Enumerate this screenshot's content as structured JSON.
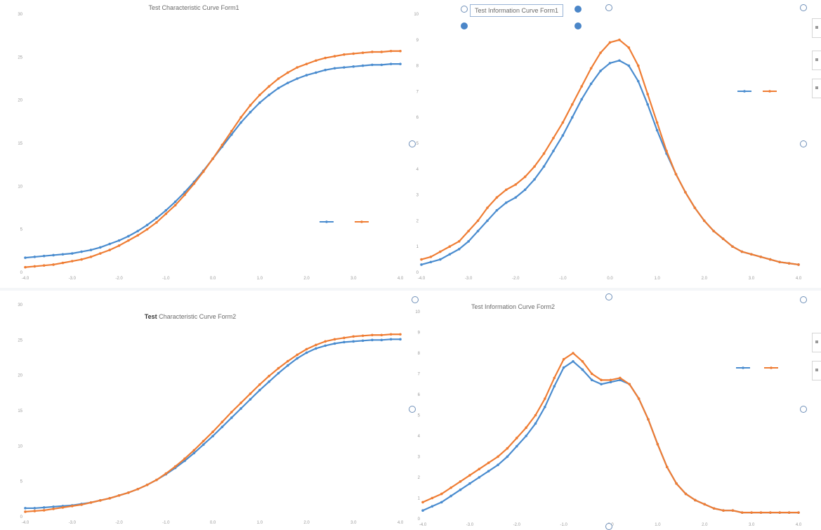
{
  "chart_data": [
    {
      "id": "tcc1",
      "type": "line",
      "title": "Test Characteristic Curve Form1",
      "xlabel": "",
      "ylabel": "",
      "ylim": [
        0,
        30
      ],
      "yticks": [
        0,
        5,
        10,
        15,
        20,
        25,
        30
      ],
      "x": [
        -4.0,
        -3.8,
        -3.6,
        -3.4,
        -3.2,
        -3.0,
        -2.8,
        -2.6,
        -2.4,
        -2.2,
        -2.0,
        -1.8,
        -1.6,
        -1.4,
        -1.2,
        -1.0,
        -0.8,
        -0.6,
        -0.4,
        -0.2,
        0.0,
        0.2,
        0.4,
        0.6,
        0.8,
        1.0,
        1.2,
        1.4,
        1.6,
        1.8,
        2.0,
        2.2,
        2.4,
        2.6,
        2.8,
        3.0,
        3.2,
        3.4,
        3.6,
        3.8,
        4.0
      ],
      "xticks": [
        -4.0,
        -3.0,
        -2.0,
        -1.0,
        0.0,
        1.0,
        2.0,
        3.0,
        4.0
      ],
      "grid": false,
      "legend_position": "lower-right",
      "series": [
        {
          "color": "#4a8ccf",
          "values": [
            1.7,
            1.8,
            1.9,
            2.0,
            2.1,
            2.2,
            2.4,
            2.6,
            2.9,
            3.3,
            3.7,
            4.2,
            4.8,
            5.5,
            6.3,
            7.2,
            8.2,
            9.3,
            10.5,
            11.8,
            13.2,
            14.6,
            16.0,
            17.4,
            18.6,
            19.7,
            20.6,
            21.4,
            22.0,
            22.5,
            22.9,
            23.2,
            23.5,
            23.7,
            23.8,
            23.9,
            24.0,
            24.1,
            24.1,
            24.2,
            24.2
          ]
        },
        {
          "color": "#ef7d34",
          "values": [
            0.6,
            0.7,
            0.8,
            0.9,
            1.1,
            1.3,
            1.5,
            1.8,
            2.2,
            2.6,
            3.1,
            3.7,
            4.3,
            5.0,
            5.8,
            6.8,
            7.8,
            9.0,
            10.3,
            11.7,
            13.2,
            14.8,
            16.4,
            18.0,
            19.4,
            20.6,
            21.6,
            22.5,
            23.2,
            23.8,
            24.2,
            24.6,
            24.9,
            25.1,
            25.3,
            25.4,
            25.5,
            25.6,
            25.6,
            25.7,
            25.7
          ]
        }
      ]
    },
    {
      "id": "tic1",
      "type": "line",
      "title": "Test Information Curve Form1",
      "xlabel": "",
      "ylabel": "",
      "ylim": [
        0,
        10
      ],
      "yticks": [
        0,
        1,
        2,
        3,
        4,
        5,
        6,
        7,
        8,
        9,
        10
      ],
      "x": [
        -4.0,
        -3.8,
        -3.6,
        -3.4,
        -3.2,
        -3.0,
        -2.8,
        -2.6,
        -2.4,
        -2.2,
        -2.0,
        -1.8,
        -1.6,
        -1.4,
        -1.2,
        -1.0,
        -0.8,
        -0.6,
        -0.4,
        -0.2,
        0.0,
        0.2,
        0.4,
        0.6,
        0.8,
        1.0,
        1.2,
        1.4,
        1.6,
        1.8,
        2.0,
        2.2,
        2.4,
        2.6,
        2.8,
        3.0,
        3.2,
        3.4,
        3.6,
        3.8,
        4.0
      ],
      "xticks": [
        -4.0,
        -3.0,
        -2.0,
        -1.0,
        0.0,
        1.0,
        2.0,
        3.0,
        4.0
      ],
      "grid": false,
      "legend_position": "top-right",
      "series": [
        {
          "color": "#4a8ccf",
          "values": [
            0.3,
            0.4,
            0.5,
            0.7,
            0.9,
            1.2,
            1.6,
            2.0,
            2.4,
            2.7,
            2.9,
            3.2,
            3.6,
            4.1,
            4.7,
            5.3,
            6.0,
            6.7,
            7.3,
            7.8,
            8.1,
            8.2,
            8.0,
            7.4,
            6.5,
            5.5,
            4.6,
            3.8,
            3.1,
            2.5,
            2.0,
            1.6,
            1.3,
            1.0,
            0.8,
            0.7,
            0.6,
            0.5,
            0.4,
            0.35,
            0.3
          ]
        },
        {
          "color": "#ef7d34",
          "values": [
            0.5,
            0.6,
            0.8,
            1.0,
            1.2,
            1.6,
            2.0,
            2.5,
            2.9,
            3.2,
            3.4,
            3.7,
            4.1,
            4.6,
            5.2,
            5.8,
            6.5,
            7.2,
            7.9,
            8.5,
            8.9,
            9.0,
            8.7,
            8.0,
            6.9,
            5.8,
            4.7,
            3.8,
            3.1,
            2.5,
            2.0,
            1.6,
            1.3,
            1.0,
            0.8,
            0.7,
            0.6,
            0.5,
            0.4,
            0.35,
            0.3
          ]
        }
      ]
    },
    {
      "id": "tcc2",
      "type": "line",
      "title_bold": "Test",
      "title": "Characteristic Curve Form2",
      "xlabel": "",
      "ylabel": "",
      "ylim": [
        0,
        30
      ],
      "yticks": [
        0,
        5,
        10,
        15,
        20,
        25,
        30
      ],
      "x": [
        -4.0,
        -3.8,
        -3.6,
        -3.4,
        -3.2,
        -3.0,
        -2.8,
        -2.6,
        -2.4,
        -2.2,
        -2.0,
        -1.8,
        -1.6,
        -1.4,
        -1.2,
        -1.0,
        -0.8,
        -0.6,
        -0.4,
        -0.2,
        0.0,
        0.2,
        0.4,
        0.6,
        0.8,
        1.0,
        1.2,
        1.4,
        1.6,
        1.8,
        2.0,
        2.2,
        2.4,
        2.6,
        2.8,
        3.0,
        3.2,
        3.4,
        3.6,
        3.8,
        4.0
      ],
      "xticks": [
        -4.0,
        -3.0,
        -2.0,
        -1.0,
        0.0,
        1.0,
        2.0,
        3.0,
        4.0
      ],
      "grid": false,
      "series": [
        {
          "color": "#4a8ccf",
          "values": [
            1.2,
            1.2,
            1.3,
            1.4,
            1.5,
            1.6,
            1.8,
            2.0,
            2.3,
            2.6,
            3.0,
            3.4,
            3.9,
            4.5,
            5.2,
            6.0,
            6.9,
            7.9,
            9.0,
            10.2,
            11.4,
            12.7,
            14.0,
            15.3,
            16.6,
            17.9,
            19.1,
            20.3,
            21.4,
            22.4,
            23.2,
            23.8,
            24.2,
            24.5,
            24.7,
            24.8,
            24.9,
            25.0,
            25.0,
            25.1,
            25.1
          ]
        },
        {
          "color": "#ef7d34",
          "values": [
            0.7,
            0.8,
            0.9,
            1.1,
            1.3,
            1.5,
            1.7,
            2.0,
            2.3,
            2.6,
            3.0,
            3.4,
            3.9,
            4.5,
            5.2,
            6.1,
            7.1,
            8.2,
            9.4,
            10.7,
            12.0,
            13.4,
            14.8,
            16.1,
            17.4,
            18.7,
            19.9,
            21.0,
            22.0,
            22.9,
            23.7,
            24.3,
            24.8,
            25.1,
            25.3,
            25.5,
            25.6,
            25.7,
            25.7,
            25.8,
            25.8
          ]
        }
      ]
    },
    {
      "id": "tic2",
      "type": "line",
      "title": "Test Information Curve Form2",
      "xlabel": "",
      "ylabel": "",
      "ylim": [
        0,
        10
      ],
      "yticks": [
        0,
        1,
        2,
        3,
        4,
        5,
        6,
        7,
        8,
        9,
        10
      ],
      "x": [
        -4.0,
        -3.8,
        -3.6,
        -3.4,
        -3.2,
        -3.0,
        -2.8,
        -2.6,
        -2.4,
        -2.2,
        -2.0,
        -1.8,
        -1.6,
        -1.4,
        -1.2,
        -1.0,
        -0.8,
        -0.6,
        -0.4,
        -0.2,
        0.0,
        0.2,
        0.4,
        0.6,
        0.8,
        1.0,
        1.2,
        1.4,
        1.6,
        1.8,
        2.0,
        2.2,
        2.4,
        2.6,
        2.8,
        3.0,
        3.2,
        3.4,
        3.6,
        3.8,
        4.0
      ],
      "xticks": [
        -4.0,
        -3.0,
        -2.0,
        -1.0,
        0.0,
        1.0,
        2.0,
        3.0,
        4.0
      ],
      "grid": false,
      "legend_position": "top-right",
      "series": [
        {
          "color": "#4a8ccf",
          "values": [
            0.4,
            0.6,
            0.8,
            1.1,
            1.4,
            1.7,
            2.0,
            2.3,
            2.6,
            3.0,
            3.5,
            4.0,
            4.6,
            5.4,
            6.4,
            7.3,
            7.6,
            7.2,
            6.7,
            6.5,
            6.6,
            6.7,
            6.5,
            5.8,
            4.8,
            3.6,
            2.5,
            1.7,
            1.2,
            0.9,
            0.7,
            0.5,
            0.4,
            0.4,
            0.3,
            0.3,
            0.3,
            0.3,
            0.3,
            0.3,
            0.3
          ]
        },
        {
          "color": "#ef7d34",
          "values": [
            0.8,
            1.0,
            1.2,
            1.5,
            1.8,
            2.1,
            2.4,
            2.7,
            3.0,
            3.4,
            3.9,
            4.4,
            5.0,
            5.8,
            6.8,
            7.7,
            8.0,
            7.6,
            7.0,
            6.7,
            6.7,
            6.8,
            6.5,
            5.8,
            4.8,
            3.6,
            2.5,
            1.7,
            1.2,
            0.9,
            0.7,
            0.5,
            0.4,
            0.4,
            0.3,
            0.3,
            0.3,
            0.3,
            0.3,
            0.3,
            0.3
          ]
        }
      ]
    }
  ]
}
